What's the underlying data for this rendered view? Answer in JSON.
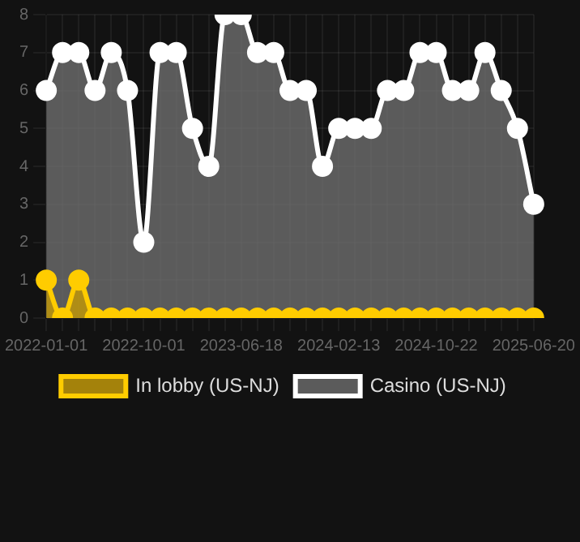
{
  "chart_data": {
    "type": "area",
    "categories": [
      "2022-01-01",
      null,
      null,
      null,
      null,
      null,
      "2022-10-01",
      null,
      null,
      null,
      null,
      null,
      "2023-06-18",
      null,
      null,
      null,
      null,
      null,
      "2024-02-13",
      null,
      null,
      null,
      null,
      null,
      "2024-10-22",
      null,
      null,
      null,
      null,
      null,
      "2025-06-20"
    ],
    "series": [
      {
        "name": "In lobby (US-NJ)",
        "color": "#ffcc00",
        "values": [
          1,
          0,
          1,
          0,
          0,
          0,
          0,
          0,
          0,
          0,
          0,
          0,
          0,
          0,
          0,
          0,
          0,
          0,
          0,
          0,
          0,
          0,
          0,
          0,
          0,
          0,
          0,
          0,
          0,
          0,
          0
        ]
      },
      {
        "name": "Casino (US-NJ)",
        "color": "#ffffff",
        "values": [
          6,
          7,
          7,
          6,
          7,
          6,
          2,
          7,
          7,
          5,
          4,
          8,
          8,
          7,
          7,
          6,
          6,
          4,
          5,
          5,
          5,
          6,
          6,
          7,
          7,
          6,
          6,
          7,
          6,
          5,
          3
        ]
      }
    ],
    "ylim": [
      0,
      8
    ],
    "yticks": [
      0,
      1,
      2,
      3,
      4,
      5,
      6,
      7,
      8
    ],
    "grid": true,
    "legend": "bottom",
    "marker": "circle"
  }
}
